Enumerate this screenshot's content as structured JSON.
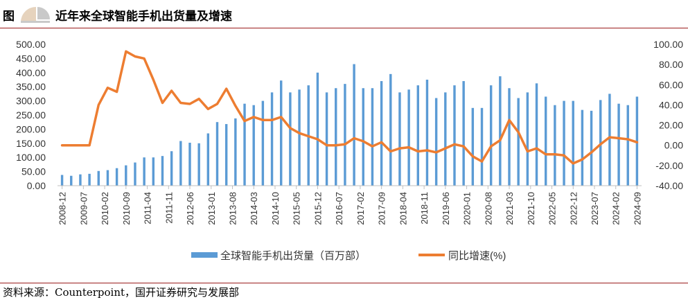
{
  "header": {
    "figure_label": "图",
    "title": "近年来全球智能手机出货量及增速"
  },
  "footer": {
    "source": "资料来源：Counterpoint，国开证券研究与发展部"
  },
  "colors": {
    "bar": "#5b9bd5",
    "line": "#ed7d31",
    "rule": "#9b1b1b",
    "logo_gray": "#c9c9c9",
    "logo_beige": "#e6d3bd"
  },
  "chart_data": {
    "type": "bar",
    "title": "",
    "legend_position": "bottom",
    "grid": false,
    "x_tick_labels": [
      "2008-12",
      "2009-07",
      "2010-02",
      "2010-09",
      "2011-04",
      "2011-11",
      "2012-06",
      "2013-01",
      "2013-08",
      "2014-03",
      "2014-10",
      "2015-05",
      "2015-12",
      "2016-07",
      "2017-02",
      "2017-09",
      "2018-04",
      "2018-11",
      "2019-06",
      "2020-01",
      "2020-08",
      "2021-03",
      "2021-10",
      "2022-05",
      "2022-12",
      "2023-07",
      "2024-02",
      "2024-09"
    ],
    "left_axis": {
      "ylim": [
        0,
        500
      ],
      "tick_labels": [
        "0.00",
        "50.00",
        "100.00",
        "150.00",
        "200.00",
        "250.00",
        "300.00",
        "350.00",
        "400.00",
        "450.00",
        "500.00"
      ]
    },
    "right_axis": {
      "ylim": [
        -40,
        100
      ],
      "tick_labels": [
        "-40.00",
        "-20.00",
        "0.00",
        "20.00",
        "40.00",
        "60.00",
        "80.00",
        "100.00"
      ]
    },
    "series": [
      {
        "name": "全球智能手机出货量（百万部）",
        "type": "bar",
        "axis": "left",
        "values": [
          38,
          35,
          40,
          42,
          52,
          55,
          62,
          72,
          82,
          100,
          100,
          105,
          122,
          158,
          152,
          150,
          185,
          225,
          218,
          238,
          290,
          285,
          300,
          330,
          372,
          330,
          340,
          355,
          400,
          330,
          345,
          360,
          430,
          345,
          345,
          370,
          395,
          330,
          340,
          355,
          375,
          310,
          330,
          355,
          370,
          275,
          275,
          355,
          387,
          345,
          310,
          330,
          362,
          315,
          285,
          300,
          300,
          268,
          265,
          303,
          325,
          290,
          285,
          315
        ],
        "color": "#5b9bd5"
      },
      {
        "name": "同比增速(%)",
        "type": "line",
        "axis": "right",
        "values": [
          0,
          0,
          0,
          0,
          40,
          57,
          53,
          93,
          88,
          86,
          65,
          42,
          54,
          42,
          41,
          46,
          36,
          41,
          56,
          39,
          24,
          28,
          25,
          25,
          28,
          17,
          12,
          9,
          6,
          0,
          0,
          1,
          7,
          4,
          -1,
          3,
          -6,
          -3,
          -2,
          -6,
          -5,
          -7,
          -3,
          1,
          -1,
          -11,
          -16,
          -1,
          5,
          25,
          13,
          -6,
          -3,
          -9,
          -9,
          -10,
          -18,
          -14,
          -7,
          1,
          8,
          7,
          6,
          3
        ],
        "color": "#ed7d31"
      }
    ]
  }
}
